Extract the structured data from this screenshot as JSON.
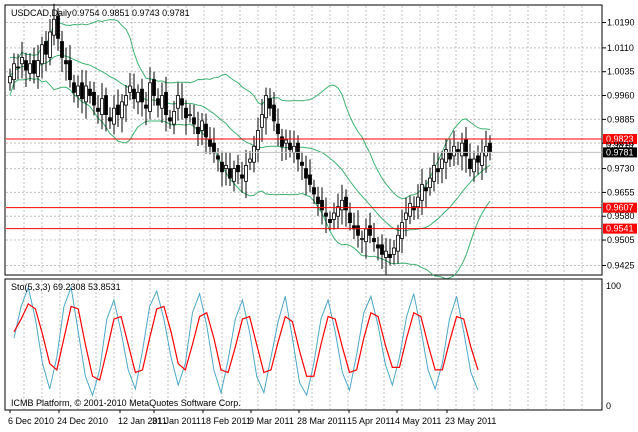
{
  "main_chart": {
    "symbol_label": "USDCAD,Daily",
    "ohlc_values": "0.9754 0.9851 0.9743 0.9781",
    "ylim": [
      0.9395,
      1.0245
    ],
    "ticks": [
      "1.0190",
      "1.0110",
      "1.0035",
      "0.9960",
      "0.9885",
      "0.9810",
      "0.9730",
      "0.9655",
      "0.9580",
      "0.9505",
      "0.9425"
    ],
    "hlines": [
      {
        "value": 0.9823,
        "label": "0.9823"
      },
      {
        "value": 0.9607,
        "label": "0.9607"
      },
      {
        "value": 0.9541,
        "label": "0.9541"
      }
    ],
    "current_price": {
      "value": 0.9781,
      "label": "0.9781"
    },
    "partial_label": "0.9810"
  },
  "stoch": {
    "label": "Sto(5,3,3) 69.2308 53.8531",
    "ticks": [
      "100",
      "0"
    ],
    "ylim": [
      0,
      100
    ]
  },
  "footer": {
    "copyright": "ICMB Platform, © 2001-2010 MetaQuotes Software Corp."
  },
  "x_axis": {
    "labels": [
      "6 Dec 2010",
      "24 Dec 2010",
      "12 Jan 2011",
      "31 Jan 2011",
      "18 Feb 2011",
      "9 Mar 2011",
      "28 Mar 2011",
      "15 Apr 2011",
      "4 May 2011",
      "23 May 2011"
    ]
  },
  "colors": {
    "candle": "#000000",
    "bollinger": "#3cb371",
    "hline": "#ff0000",
    "stoch_main": "#4aa8c8",
    "stoch_signal": "#ff0000",
    "grid": "#c0c0c0"
  },
  "chart_data": {
    "type": "candlestick",
    "closes": [
      1.002,
      1.006,
      1.005,
      1.008,
      1.004,
      1.006,
      1.003,
      1.007,
      1.012,
      1.009,
      1.016,
      1.02,
      1.014,
      1.008,
      1.006,
      1.001,
      0.997,
      0.999,
      0.995,
      0.999,
      0.996,
      0.993,
      0.991,
      0.995,
      0.99,
      0.988,
      0.992,
      0.99,
      0.994,
      0.996,
      0.999,
      0.995,
      0.997,
      0.994,
      0.992,
      1.0,
      0.996,
      0.993,
      0.996,
      0.99,
      0.988,
      0.991,
      0.996,
      0.993,
      0.989,
      0.99,
      0.987,
      0.984,
      0.988,
      0.983,
      0.98,
      0.978,
      0.976,
      0.972,
      0.974,
      0.97,
      0.973,
      0.972,
      0.97,
      0.974,
      0.976,
      0.98,
      0.985,
      0.99,
      0.996,
      0.992,
      0.988,
      0.984,
      0.98,
      0.982,
      0.979,
      0.98,
      0.976,
      0.974,
      0.97,
      0.968,
      0.965,
      0.962,
      0.96,
      0.958,
      0.956,
      0.959,
      0.961,
      0.963,
      0.96,
      0.956,
      0.954,
      0.952,
      0.951,
      0.954,
      0.952,
      0.95,
      0.948,
      0.946,
      0.947,
      0.945,
      0.948,
      0.952,
      0.956,
      0.959,
      0.962,
      0.96,
      0.964,
      0.968,
      0.966,
      0.97,
      0.974,
      0.972,
      0.976,
      0.979,
      0.976,
      0.98,
      0.978,
      0.981,
      0.977,
      0.973,
      0.976,
      0.975,
      0.978,
      0.98,
      0.9781
    ],
    "stoch_main": [
      55,
      80,
      95,
      70,
      35,
      15,
      40,
      80,
      95,
      60,
      25,
      10,
      30,
      70,
      85,
      60,
      30,
      15,
      45,
      80,
      92,
      70,
      40,
      18,
      35,
      75,
      90,
      65,
      30,
      12,
      38,
      70,
      85,
      60,
      25,
      12,
      40,
      68,
      88,
      55,
      20,
      10,
      35,
      70,
      85,
      60,
      28,
      14,
      42,
      75,
      88,
      65,
      35,
      18,
      40,
      72,
      90,
      62,
      30,
      15,
      35,
      70,
      88,
      60,
      28,
      14
    ],
    "stoch_signal": [
      60,
      70,
      82,
      78,
      58,
      35,
      30,
      55,
      80,
      78,
      50,
      25,
      22,
      45,
      70,
      72,
      50,
      28,
      30,
      55,
      78,
      80,
      60,
      35,
      30,
      50,
      72,
      75,
      55,
      30,
      28,
      48,
      70,
      72,
      50,
      28,
      30,
      52,
      72,
      68,
      45,
      25,
      25,
      50,
      72,
      70,
      48,
      28,
      30,
      55,
      75,
      72,
      50,
      32,
      32,
      55,
      75,
      72,
      50,
      30,
      30,
      52,
      72,
      70,
      48,
      30
    ]
  }
}
